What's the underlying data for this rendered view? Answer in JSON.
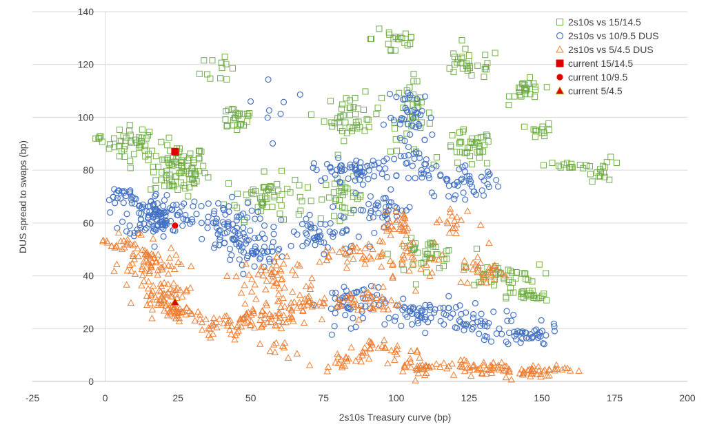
{
  "chart_data": {
    "type": "scatter",
    "title": "",
    "xlabel": "2s10s Treasury curve (bp)",
    "ylabel": "DUS spread to swaps (bp)",
    "xlim": [
      -25,
      200
    ],
    "ylim": [
      0,
      140
    ],
    "x_ticks": [
      -25,
      0,
      25,
      50,
      75,
      100,
      125,
      150,
      175,
      200
    ],
    "y_ticks": [
      0,
      20,
      40,
      60,
      80,
      100,
      120,
      140
    ],
    "grid": "horizontal-only",
    "legend_position": "top-right",
    "colors": {
      "green": "#70ad47",
      "blue": "#4472c4",
      "orange": "#ed7d31",
      "red": "#e00000"
    },
    "series": [
      {
        "name": "2s10s vs 15/14.5",
        "marker": "square-open",
        "color": "#70ad47",
        "clusters": [
          {
            "x": 10,
            "y": 90,
            "n": 40,
            "sx": 6,
            "sy": 5
          },
          {
            "x": 25,
            "y": 80,
            "n": 90,
            "sx": 7,
            "sy": 7
          },
          {
            "x": 45,
            "y": 100,
            "n": 25,
            "sx": 5,
            "sy": 4
          },
          {
            "x": 40,
            "y": 120,
            "n": 12,
            "sx": 5,
            "sy": 6
          },
          {
            "x": 55,
            "y": 70,
            "n": 60,
            "sx": 10,
            "sy": 6
          },
          {
            "x": 85,
            "y": 100,
            "n": 45,
            "sx": 7,
            "sy": 6
          },
          {
            "x": 82,
            "y": 70,
            "n": 30,
            "sx": 5,
            "sy": 5
          },
          {
            "x": 105,
            "y": 100,
            "n": 40,
            "sx": 5,
            "sy": 10
          },
          {
            "x": 100,
            "y": 130,
            "n": 20,
            "sx": 6,
            "sy": 6
          },
          {
            "x": 125,
            "y": 120,
            "n": 30,
            "sx": 8,
            "sy": 4
          },
          {
            "x": 125,
            "y": 88,
            "n": 40,
            "sx": 6,
            "sy": 5
          },
          {
            "x": 145,
            "y": 110,
            "n": 25,
            "sx": 4,
            "sy": 3
          },
          {
            "x": 150,
            "y": 95,
            "n": 12,
            "sx": 3,
            "sy": 2
          },
          {
            "x": 160,
            "y": 82,
            "n": 15,
            "sx": 6,
            "sy": 1
          },
          {
            "x": 172,
            "y": 80,
            "n": 15,
            "sx": 4,
            "sy": 3
          },
          {
            "x": 110,
            "y": 48,
            "n": 40,
            "sx": 8,
            "sy": 4
          },
          {
            "x": 135,
            "y": 40,
            "n": 40,
            "sx": 10,
            "sy": 3
          },
          {
            "x": 145,
            "y": 32,
            "n": 25,
            "sx": 5,
            "sy": 2
          },
          {
            "x": -2,
            "y": 92,
            "n": 6,
            "sx": 2,
            "sy": 1
          }
        ]
      },
      {
        "name": "2s10s vs 10/9.5 DUS",
        "marker": "circle-open",
        "color": "#4472c4",
        "clusters": [
          {
            "x": 18,
            "y": 63,
            "n": 120,
            "sx": 8,
            "sy": 6
          },
          {
            "x": 5,
            "y": 70,
            "n": 20,
            "sx": 5,
            "sy": 3
          },
          {
            "x": 40,
            "y": 60,
            "n": 60,
            "sx": 8,
            "sy": 6
          },
          {
            "x": 50,
            "y": 50,
            "n": 60,
            "sx": 8,
            "sy": 6
          },
          {
            "x": 75,
            "y": 55,
            "n": 50,
            "sx": 10,
            "sy": 6
          },
          {
            "x": 85,
            "y": 80,
            "n": 60,
            "sx": 10,
            "sy": 3
          },
          {
            "x": 95,
            "y": 65,
            "n": 40,
            "sx": 8,
            "sy": 4
          },
          {
            "x": 105,
            "y": 100,
            "n": 40,
            "sx": 6,
            "sy": 8
          },
          {
            "x": 110,
            "y": 80,
            "n": 30,
            "sx": 6,
            "sy": 6
          },
          {
            "x": 125,
            "y": 75,
            "n": 40,
            "sx": 8,
            "sy": 4
          },
          {
            "x": 85,
            "y": 30,
            "n": 50,
            "sx": 8,
            "sy": 6
          },
          {
            "x": 110,
            "y": 25,
            "n": 60,
            "sx": 10,
            "sy": 4
          },
          {
            "x": 130,
            "y": 22,
            "n": 30,
            "sx": 10,
            "sy": 4
          },
          {
            "x": 145,
            "y": 17,
            "n": 40,
            "sx": 8,
            "sy": 3
          },
          {
            "x": 60,
            "y": 105,
            "n": 8,
            "sx": 10,
            "sy": 10
          }
        ]
      },
      {
        "name": "2s10s vs 5/4.5 DUS",
        "marker": "triangle-open",
        "color": "#ed7d31",
        "clusters": [
          {
            "x": 15,
            "y": 45,
            "n": 60,
            "sx": 7,
            "sy": 5
          },
          {
            "x": 20,
            "y": 33,
            "n": 60,
            "sx": 6,
            "sy": 4
          },
          {
            "x": 5,
            "y": 53,
            "n": 20,
            "sx": 5,
            "sy": 3
          },
          {
            "x": 25,
            "y": 26,
            "n": 30,
            "sx": 5,
            "sy": 2
          },
          {
            "x": 55,
            "y": 40,
            "n": 40,
            "sx": 8,
            "sy": 5
          },
          {
            "x": 50,
            "y": 23,
            "n": 60,
            "sx": 10,
            "sy": 3
          },
          {
            "x": 65,
            "y": 30,
            "n": 50,
            "sx": 10,
            "sy": 5
          },
          {
            "x": 85,
            "y": 48,
            "n": 30,
            "sx": 8,
            "sy": 3
          },
          {
            "x": 90,
            "y": 30,
            "n": 40,
            "sx": 8,
            "sy": 4
          },
          {
            "x": 100,
            "y": 60,
            "n": 30,
            "sx": 6,
            "sy": 6
          },
          {
            "x": 105,
            "y": 45,
            "n": 30,
            "sx": 8,
            "sy": 6
          },
          {
            "x": 120,
            "y": 60,
            "n": 20,
            "sx": 6,
            "sy": 5
          },
          {
            "x": 130,
            "y": 42,
            "n": 30,
            "sx": 6,
            "sy": 4
          },
          {
            "x": 95,
            "y": 12,
            "n": 30,
            "sx": 10,
            "sy": 3
          },
          {
            "x": 110,
            "y": 6,
            "n": 40,
            "sx": 8,
            "sy": 3
          },
          {
            "x": 130,
            "y": 5,
            "n": 40,
            "sx": 8,
            "sy": 2
          },
          {
            "x": 148,
            "y": 4,
            "n": 40,
            "sx": 8,
            "sy": 2
          },
          {
            "x": 80,
            "y": 8,
            "n": 15,
            "sx": 5,
            "sy": 2
          },
          {
            "x": 60,
            "y": 12,
            "n": 10,
            "sx": 4,
            "sy": 2
          },
          {
            "x": 40,
            "y": 20,
            "n": 20,
            "sx": 6,
            "sy": 4
          }
        ]
      },
      {
        "name": "current 15/14.5",
        "marker": "square-filled",
        "color": "#e00000",
        "points": [
          {
            "x": 24,
            "y": 87
          }
        ]
      },
      {
        "name": "current 10/9.5",
        "marker": "circle-filled",
        "color": "#e00000",
        "points": [
          {
            "x": 24,
            "y": 59
          }
        ]
      },
      {
        "name": "current 5/4.5",
        "marker": "triangle-filled",
        "color": "#e00000",
        "points": [
          {
            "x": 24,
            "y": 30
          }
        ]
      }
    ]
  }
}
